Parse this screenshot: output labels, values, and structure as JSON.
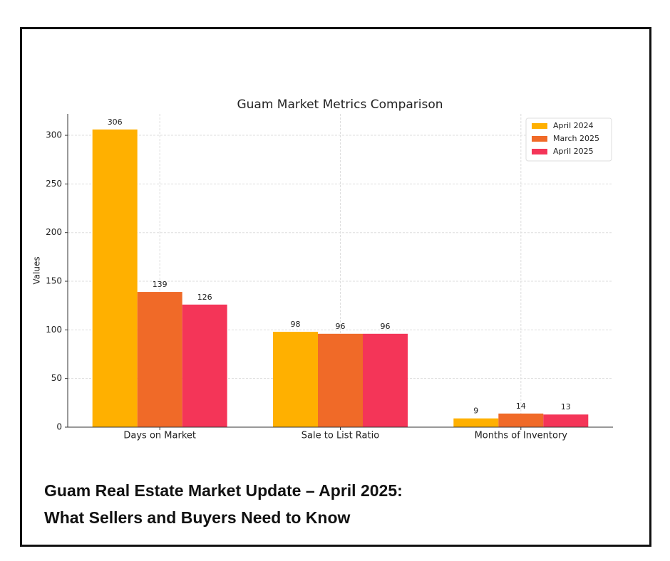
{
  "chart_data": {
    "type": "bar",
    "title": "Guam Market Metrics Comparison",
    "y_label": "Values",
    "categories": [
      "Days on Market",
      "Sale to List Ratio",
      "Months of Inventory"
    ],
    "series": [
      {
        "name": "April 2024",
        "color": "#ffb000",
        "values": [
          306,
          98,
          9
        ]
      },
      {
        "name": "March 2025",
        "color": "#f06a28",
        "values": [
          139,
          96,
          14
        ]
      },
      {
        "name": "April 2025",
        "color": "#f43558",
        "values": [
          126,
          96,
          13
        ]
      }
    ],
    "ylim": [
      0,
      322
    ],
    "yticks": [
      0,
      50,
      100,
      150,
      200,
      250,
      300
    ],
    "grid": true,
    "legend": "upper right"
  },
  "caption": {
    "lines": [
      "Guam Real Estate Market Update – April 2025:",
      "What Sellers and Buyers Need to Know"
    ]
  }
}
